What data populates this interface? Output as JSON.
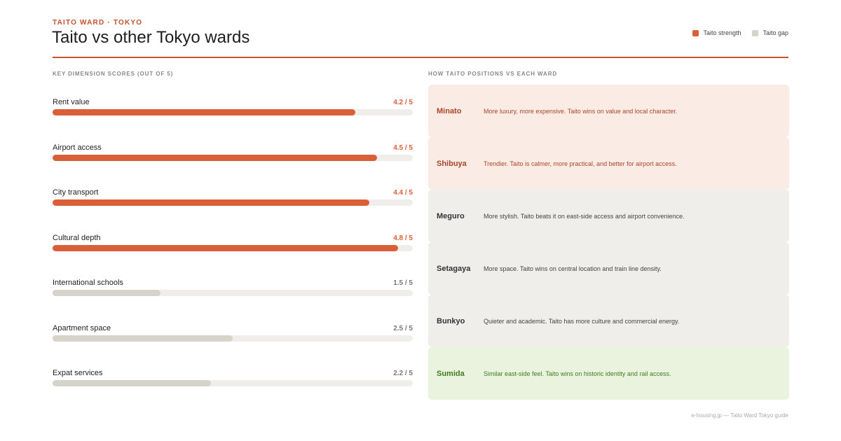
{
  "header": {
    "eyebrow": "TAITO WARD · TOKYO",
    "title": "Taito vs other Tokyo wards"
  },
  "legend": [
    {
      "label": "Taito strength",
      "color": "#d95f38"
    },
    {
      "label": "Taito gap",
      "color": "#d6d3cb"
    }
  ],
  "left_section_label": "KEY DIMENSION SCORES (OUT OF 5)",
  "right_section_label": "HOW TAITO POSITIONS VS EACH WARD",
  "chart_data": {
    "type": "bar",
    "orientation": "horizontal",
    "title": "KEY DIMENSION SCORES (OUT OF 5)",
    "xlim": [
      0,
      5
    ],
    "categories": [
      "Rent value",
      "Airport access",
      "City transport",
      "Cultural depth",
      "International schools",
      "Apartment space",
      "Expat services"
    ],
    "values": [
      4.2,
      4.5,
      4.4,
      4.8,
      1.5,
      2.5,
      2.2
    ],
    "value_labels": [
      "4.2 / 5",
      "4.5 / 5",
      "4.4 / 5",
      "4.8 / 5",
      "1.5 / 5",
      "2.5 / 5",
      "2.2 / 5"
    ],
    "kinds": [
      "strength",
      "strength",
      "strength",
      "strength",
      "gap",
      "gap",
      "gap"
    ],
    "colors": {
      "strength": "#d95f38",
      "gap": "#d6d3cb",
      "track": "#f0eeea",
      "strength_text": "#d95f38",
      "gap_text": "#777777"
    }
  },
  "comparisons": [
    {
      "ward": "Minato",
      "text": "More luxury, more expensive. Taito wins on value and local character.",
      "bg": "#fbebe5",
      "name_color": "#a8442a",
      "text_color": "#a8442a"
    },
    {
      "ward": "Shibuya",
      "text": "Trendier. Taito is calmer, more practical, and better for airport access.",
      "bg": "#fbebe5",
      "name_color": "#a8442a",
      "text_color": "#a8442a"
    },
    {
      "ward": "Meguro",
      "text": "More stylish. Taito beats it on east-side access and airport convenience.",
      "bg": "#f0eeea",
      "name_color": "#333333",
      "text_color": "#444444"
    },
    {
      "ward": "Setagaya",
      "text": "More space. Taito wins on central location and train line density.",
      "bg": "#f0eeea",
      "name_color": "#333333",
      "text_color": "#444444"
    },
    {
      "ward": "Bunkyo",
      "text": "Quieter and academic. Taito has more culture and commercial energy.",
      "bg": "#f0eeea",
      "name_color": "#333333",
      "text_color": "#444444"
    },
    {
      "ward": "Sumida",
      "text": "Similar east-side feel. Taito wins on historic identity and rail access.",
      "bg": "#eaf3de",
      "name_color": "#3f7a1d",
      "text_color": "#3f7a1d"
    }
  ],
  "footer": "e-housing.jp — Taito Ward Tokyo guide"
}
